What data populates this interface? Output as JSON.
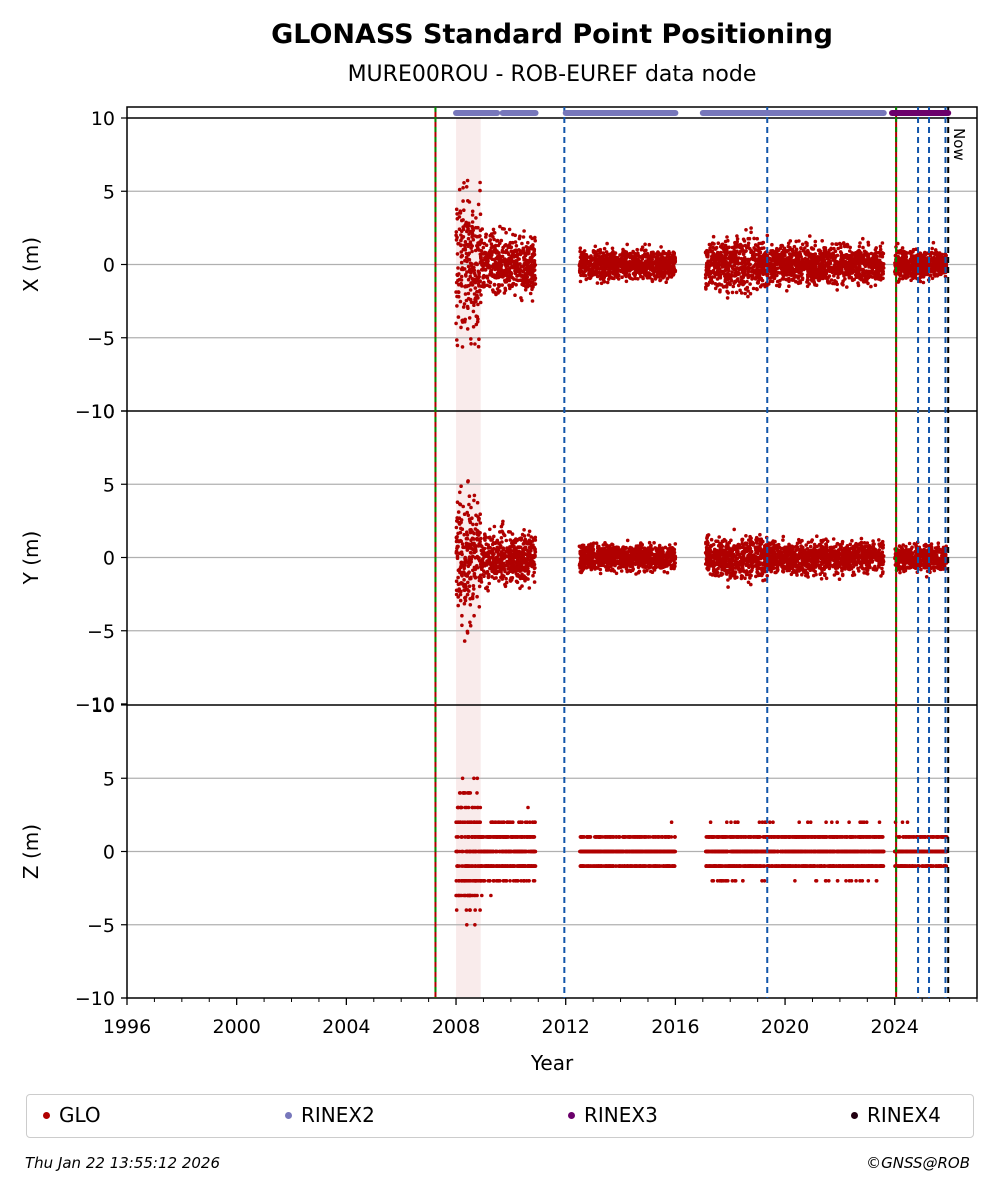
{
  "chart_data": {
    "type": "scatter",
    "title": "GLONASS Standard Point Positioning",
    "subtitle": "MURE00ROU - ROB-EUREF data node",
    "xlabel": "Year",
    "xlim": [
      1996,
      2027
    ],
    "xticks": [
      "1996",
      "2000",
      "2004",
      "2008",
      "2012",
      "2016",
      "2020",
      "2024"
    ],
    "panels": [
      {
        "ylabel": "X (m)",
        "ylim": [
          -10,
          10
        ],
        "yticks": [
          "−10",
          "−5",
          "0",
          "5",
          "10"
        ]
      },
      {
        "ylabel": "Y (m)",
        "ylim": [
          -10,
          10
        ],
        "yticks": [
          "−10",
          "−5",
          "0",
          "5",
          "10"
        ]
      },
      {
        "ylabel": "Z (m)",
        "ylim": [
          -10,
          10
        ],
        "yticks": [
          "−10",
          "−5",
          "0",
          "5",
          "10"
        ]
      }
    ],
    "series": [
      {
        "name": "GLO",
        "color": "#b00000",
        "segments": [
          {
            "start": 2008.0,
            "end": 2008.9,
            "spread": [
              4.5,
              4.2,
              4.0
            ]
          },
          {
            "start": 2008.9,
            "end": 2010.9,
            "spread": [
              1.8,
              1.6,
              1.8
            ]
          },
          {
            "start": 2012.5,
            "end": 2016.0,
            "spread": [
              0.9,
              0.8,
              1.0
            ]
          },
          {
            "start": 2017.1,
            "end": 2019.4,
            "spread": [
              1.6,
              1.3,
              1.5
            ]
          },
          {
            "start": 2019.4,
            "end": 2023.6,
            "spread": [
              1.2,
              1.0,
              1.3
            ]
          },
          {
            "start": 2024.0,
            "end": 2025.9,
            "spread": [
              0.9,
              0.8,
              1.1
            ]
          }
        ]
      }
    ],
    "receiver_changes": [
      2007.25,
      2024.05
    ],
    "antenna_changes": [
      2011.95,
      2019.35,
      2024.85,
      2025.25,
      2025.85
    ],
    "now_line": 2025.95,
    "now_label": "Now",
    "rinex_tracks": {
      "RINEX2": [
        [
          2008.0,
          2009.5
        ],
        [
          2009.7,
          2010.9
        ],
        [
          2012.0,
          2016.0
        ],
        [
          2017.0,
          2023.6
        ]
      ],
      "RINEX3": [
        [
          2023.9,
          2025.95
        ]
      ]
    },
    "shaded_band": [
      2008.0,
      2008.9
    ],
    "legend": [
      {
        "label": "GLO",
        "color": "#b00000"
      },
      {
        "label": "RINEX2",
        "color": "#7777bb"
      },
      {
        "label": "RINEX3",
        "color": "#6b006b"
      },
      {
        "label": "RINEX4",
        "color": "#220011"
      }
    ],
    "grid": true,
    "legend_position": "bottom"
  },
  "footer": {
    "timestamp": "Thu Jan 22 13:55:12 2026",
    "copyright": "©GNSS@ROB"
  }
}
